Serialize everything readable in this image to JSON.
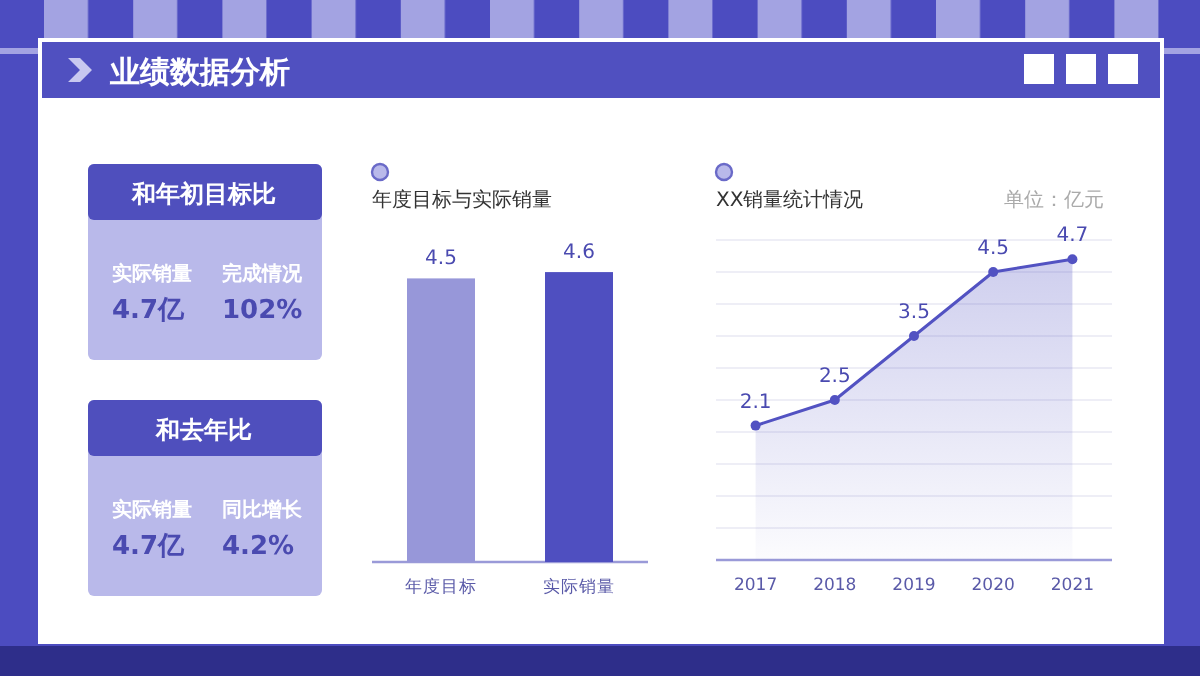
{
  "chart_data": [
    {
      "type": "other",
      "title": "业绩数据分析"
    },
    {
      "type": "other",
      "title": "和年初目标比",
      "annotations": [
        "实际销量",
        "4.7亿",
        "完成情况",
        "102%"
      ]
    },
    {
      "type": "other",
      "title": "和去年比",
      "annotations": [
        "实际销量",
        "4.7亿",
        "同比增长",
        "4.2%"
      ]
    },
    {
      "type": "bar",
      "title": "年度目标与实际销量",
      "categories": [
        "年度目标",
        "实际销量"
      ],
      "values": [
        4.5,
        4.6
      ],
      "colors": [
        "#9797d9",
        "#4f4fc0"
      ],
      "data_labels": true,
      "tick_labels": "x"
    },
    {
      "type": "area",
      "title": "XX销量统计情况",
      "annotations": [
        "单位：亿元"
      ],
      "categories": [
        "2017",
        "2018",
        "2019",
        "2020",
        "2021"
      ],
      "values": [
        2.1,
        2.5,
        3.5,
        4.5,
        4.7
      ],
      "color": "#5252c2",
      "marker": "circle",
      "data_labels": true,
      "ylim": [
        0,
        5
      ],
      "yticks": [
        {
          "value": 0.5,
          "label": null
        },
        {
          "value": 1,
          "label": null
        },
        {
          "value": 1.5,
          "label": null
        },
        {
          "value": 2,
          "label": null
        },
        {
          "value": 2.5,
          "label": null
        },
        {
          "value": 3,
          "label": null
        },
        {
          "value": 3.5,
          "label": null
        },
        {
          "value": 4,
          "label": null
        },
        {
          "value": 4.5,
          "label": null
        },
        {
          "value": 5,
          "label": null
        }
      ],
      "grid": "y",
      "tick_labels": "x"
    }
  ]
}
